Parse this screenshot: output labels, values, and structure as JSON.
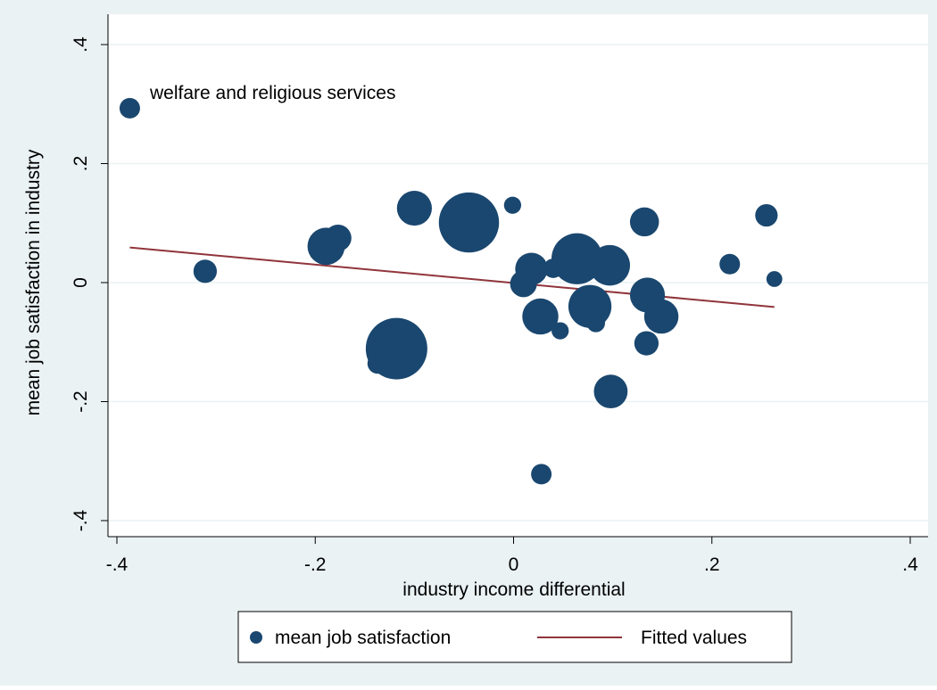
{
  "chart_data": {
    "type": "scatter",
    "title": "",
    "xlabel": "industry income differential",
    "ylabel": "mean job satisfaction in industry",
    "xlim": [
      -0.4,
      0.4
    ],
    "ylim": [
      -0.4,
      0.4
    ],
    "x_ticks": [
      -0.4,
      -0.2,
      0,
      0.2,
      0.4
    ],
    "x_tick_labels": [
      "-.4",
      "-.2",
      "0",
      ".2",
      ".4"
    ],
    "y_ticks": [
      -0.4,
      -0.2,
      0,
      0.2,
      0.4
    ],
    "y_tick_labels": [
      "-.4",
      "-.2",
      "0",
      ".2",
      ".4"
    ],
    "grid": "horizontal",
    "legend_position": "bottom",
    "annotations": [
      {
        "text": "welfare and religious services",
        "x": -0.387,
        "y": 0.293
      }
    ],
    "series": [
      {
        "name": "mean job satisfaction",
        "type": "scatter",
        "marker": "circle",
        "color": "#1a476f",
        "points": [
          {
            "x": -0.387,
            "y": 0.293,
            "weight": 1.0
          },
          {
            "x": -0.311,
            "y": 0.019,
            "weight": 1.3
          },
          {
            "x": -0.189,
            "y": 0.061,
            "weight": 3.3
          },
          {
            "x": -0.177,
            "y": 0.075,
            "weight": 1.7
          },
          {
            "x": -0.137,
            "y": -0.136,
            "weight": 1.0
          },
          {
            "x": -0.118,
            "y": -0.111,
            "weight": 9.0
          },
          {
            "x": -0.1,
            "y": 0.125,
            "weight": 2.9
          },
          {
            "x": -0.045,
            "y": 0.101,
            "weight": 8.6
          },
          {
            "x": -0.001,
            "y": 0.13,
            "weight": 0.7
          },
          {
            "x": 0.01,
            "y": -0.002,
            "weight": 1.7
          },
          {
            "x": 0.018,
            "y": 0.023,
            "weight": 2.5
          },
          {
            "x": 0.027,
            "y": -0.057,
            "weight": 3.1
          },
          {
            "x": 0.028,
            "y": -0.322,
            "weight": 1.0
          },
          {
            "x": 0.04,
            "y": 0.024,
            "weight": 0.9
          },
          {
            "x": 0.047,
            "y": -0.081,
            "weight": 0.7
          },
          {
            "x": 0.064,
            "y": 0.04,
            "weight": 6.2
          },
          {
            "x": 0.077,
            "y": -0.04,
            "weight": 4.4
          },
          {
            "x": 0.083,
            "y": -0.068,
            "weight": 0.8
          },
          {
            "x": 0.097,
            "y": 0.029,
            "weight": 3.9
          },
          {
            "x": 0.098,
            "y": -0.183,
            "weight": 2.7
          },
          {
            "x": 0.132,
            "y": 0.102,
            "weight": 2.0
          },
          {
            "x": 0.134,
            "y": -0.102,
            "weight": 1.4
          },
          {
            "x": 0.135,
            "y": -0.021,
            "weight": 2.9
          },
          {
            "x": 0.149,
            "y": -0.057,
            "weight": 2.8
          },
          {
            "x": 0.218,
            "y": 0.031,
            "weight": 1.0
          },
          {
            "x": 0.255,
            "y": 0.113,
            "weight": 1.2
          },
          {
            "x": 0.263,
            "y": 0.006,
            "weight": 0.6
          }
        ]
      },
      {
        "name": "Fitted values",
        "type": "line",
        "color": "#90353b",
        "points": [
          {
            "x": -0.387,
            "y": 0.059
          },
          {
            "x": 0.263,
            "y": -0.041
          }
        ]
      }
    ]
  }
}
